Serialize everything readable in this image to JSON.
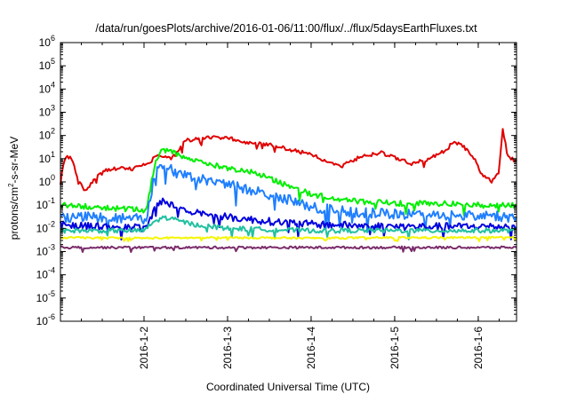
{
  "chart_data": {
    "type": "line",
    "title": "/data/run/goesPlots/archive/2016-01-06/11:00/flux/../flux/5daysEarthFluxes.txt",
    "xlabel": "Coordinated Universal Time (UTC)",
    "ylabel_base": "protons/cm",
    "ylabel_sup": "2",
    "ylabel_rest": "-s-sr-MeV",
    "y_scale": "log",
    "ylim": [
      1e-06,
      1000000.0
    ],
    "xlim": [
      "2016-01-01 00:00",
      "2016-01-06 11:00"
    ],
    "x_tick_labels": [
      "2016-1-2",
      "2016-1-3",
      "2016-1-4",
      "2016-1-5",
      "2016-1-6"
    ],
    "x_ticks": [
      "2016-01-02 00:00",
      "2016-01-03 00:00",
      "2016-01-04 00:00",
      "2016-01-05 00:00",
      "2016-01-06 00:00"
    ],
    "y_tick_labels": [
      {
        "base": "10",
        "exp": "6"
      },
      {
        "base": "10",
        "exp": "5"
      },
      {
        "base": "10",
        "exp": "4"
      },
      {
        "base": "10",
        "exp": "3"
      },
      {
        "base": "10",
        "exp": "2"
      },
      {
        "base": "10",
        "exp": "1"
      },
      {
        "base": "10",
        "exp": "0"
      },
      {
        "base": "10",
        "exp": "-1"
      },
      {
        "base": "10",
        "exp": "-2"
      },
      {
        "base": "10",
        "exp": "-3"
      },
      {
        "base": "10",
        "exp": "-4"
      },
      {
        "base": "10",
        "exp": "-5"
      },
      {
        "base": "10",
        "exp": "-6"
      }
    ],
    "y_tick_values": [
      1000000.0,
      100000.0,
      10000.0,
      1000.0,
      100.0,
      10.0,
      1,
      0.1,
      0.01,
      0.001,
      0.0001,
      1e-05,
      1e-06
    ],
    "grid": false,
    "legend": "none",
    "series": [
      {
        "color": "#e00000",
        "noise": 0.08,
        "points": [
          [
            "2016-01-01 00:00",
            0.8
          ],
          [
            "2016-01-01 01:00",
            10
          ],
          [
            "2016-01-01 03:00",
            12
          ],
          [
            "2016-01-01 05:00",
            1.5
          ],
          [
            "2016-01-01 07:00",
            0.4
          ],
          [
            "2016-01-01 10:00",
            1.5
          ],
          [
            "2016-01-01 13:00",
            3
          ],
          [
            "2016-01-01 17:00",
            4
          ],
          [
            "2016-01-01 21:00",
            3.5
          ],
          [
            "2016-01-02 00:00",
            6
          ],
          [
            "2016-01-02 02:00",
            8
          ],
          [
            "2016-01-02 04:00",
            15
          ],
          [
            "2016-01-02 08:00",
            10
          ],
          [
            "2016-01-02 12:00",
            60
          ],
          [
            "2016-01-02 18:00",
            80
          ],
          [
            "2016-01-03 00:00",
            80
          ],
          [
            "2016-01-03 06:00",
            50
          ],
          [
            "2016-01-03 12:00",
            40
          ],
          [
            "2016-01-03 18:00",
            25
          ],
          [
            "2016-01-04 00:00",
            15
          ],
          [
            "2016-01-04 04:00",
            8
          ],
          [
            "2016-01-04 09:00",
            5
          ],
          [
            "2016-01-04 14:00",
            12
          ],
          [
            "2016-01-04 20:00",
            18
          ],
          [
            "2016-01-05 01:00",
            10
          ],
          [
            "2016-01-05 05:00",
            6
          ],
          [
            "2016-01-05 10:00",
            10
          ],
          [
            "2016-01-05 15:00",
            25
          ],
          [
            "2016-01-05 17:00",
            60
          ],
          [
            "2016-01-05 20:00",
            30
          ],
          [
            "2016-01-05 23:00",
            10
          ],
          [
            "2016-01-06 01:00",
            2
          ],
          [
            "2016-01-06 04:00",
            1
          ],
          [
            "2016-01-06 06:00",
            3
          ],
          [
            "2016-01-06 07:00",
            200
          ],
          [
            "2016-01-06 08:30",
            12
          ],
          [
            "2016-01-06 11:00",
            8
          ]
        ]
      },
      {
        "color": "#00ee00",
        "noise": 0.12,
        "points": [
          [
            "2016-01-01 00:00",
            0.1
          ],
          [
            "2016-01-01 12:00",
            0.08
          ],
          [
            "2016-01-02 00:00",
            0.06
          ],
          [
            "2016-01-02 01:00",
            0.1
          ],
          [
            "2016-01-02 03:00",
            5
          ],
          [
            "2016-01-02 05:00",
            25
          ],
          [
            "2016-01-02 10:00",
            15
          ],
          [
            "2016-01-02 18:00",
            6
          ],
          [
            "2016-01-03 00:00",
            4
          ],
          [
            "2016-01-03 06:00",
            3
          ],
          [
            "2016-01-03 12:00",
            1.5
          ],
          [
            "2016-01-03 18:00",
            0.6
          ],
          [
            "2016-01-04 00:00",
            0.3
          ],
          [
            "2016-01-04 06:00",
            0.2
          ],
          [
            "2016-01-04 12:00",
            0.15
          ],
          [
            "2016-01-05 00:00",
            0.12
          ],
          [
            "2016-01-05 12:00",
            0.12
          ],
          [
            "2016-01-06 00:00",
            0.1
          ],
          [
            "2016-01-06 11:00",
            0.1
          ]
        ]
      },
      {
        "color": "#1f7fff",
        "noise": 0.22,
        "points": [
          [
            "2016-01-01 00:00",
            0.03
          ],
          [
            "2016-01-01 12:00",
            0.03
          ],
          [
            "2016-01-02 00:00",
            0.025
          ],
          [
            "2016-01-02 01:00",
            0.04
          ],
          [
            "2016-01-02 03:00",
            2
          ],
          [
            "2016-01-02 05:00",
            6
          ],
          [
            "2016-01-02 10:00",
            2
          ],
          [
            "2016-01-02 18:00",
            1.2
          ],
          [
            "2016-01-03 00:00",
            0.8
          ],
          [
            "2016-01-03 08:00",
            0.4
          ],
          [
            "2016-01-03 16:00",
            0.2
          ],
          [
            "2016-01-04 00:00",
            0.08
          ],
          [
            "2016-01-04 12:00",
            0.05
          ],
          [
            "2016-01-05 00:00",
            0.04
          ],
          [
            "2016-01-05 12:00",
            0.04
          ],
          [
            "2016-01-06 00:00",
            0.035
          ],
          [
            "2016-01-06 11:00",
            0.03
          ]
        ]
      },
      {
        "color": "#0000dd",
        "noise": 0.16,
        "points": [
          [
            "2016-01-01 00:00",
            0.015
          ],
          [
            "2016-01-01 12:00",
            0.012
          ],
          [
            "2016-01-02 00:00",
            0.01
          ],
          [
            "2016-01-02 01:00",
            0.012
          ],
          [
            "2016-01-02 03:00",
            0.08
          ],
          [
            "2016-01-02 05:00",
            0.15
          ],
          [
            "2016-01-02 12:00",
            0.06
          ],
          [
            "2016-01-03 00:00",
            0.03
          ],
          [
            "2016-01-03 12:00",
            0.02
          ],
          [
            "2016-01-04 00:00",
            0.015
          ],
          [
            "2016-01-05 00:00",
            0.012
          ],
          [
            "2016-01-06 00:00",
            0.012
          ],
          [
            "2016-01-06 11:00",
            0.012
          ]
        ]
      },
      {
        "color": "#20c0a0",
        "noise": 0.1,
        "points": [
          [
            "2016-01-01 00:00",
            0.008
          ],
          [
            "2016-01-02 00:00",
            0.008
          ],
          [
            "2016-01-02 03:00",
            0.02
          ],
          [
            "2016-01-02 06:00",
            0.03
          ],
          [
            "2016-01-02 14:00",
            0.015
          ],
          [
            "2016-01-03 00:00",
            0.01
          ],
          [
            "2016-01-04 00:00",
            0.008
          ],
          [
            "2016-01-05 00:00",
            0.008
          ],
          [
            "2016-01-06 00:00",
            0.008
          ],
          [
            "2016-01-06 11:00",
            0.008
          ]
        ]
      },
      {
        "color": "#f5f500",
        "noise": 0.04,
        "points": [
          [
            "2016-01-01 00:00",
            0.004
          ],
          [
            "2016-01-02 00:00",
            0.0038
          ],
          [
            "2016-01-03 00:00",
            0.004
          ],
          [
            "2016-01-04 00:00",
            0.0038
          ],
          [
            "2016-01-05 00:00",
            0.004
          ],
          [
            "2016-01-06 00:00",
            0.004
          ],
          [
            "2016-01-06 11:00",
            0.004
          ]
        ]
      },
      {
        "color": "#7b2d6b",
        "noise": 0.05,
        "points": [
          [
            "2016-01-01 00:00",
            0.0015
          ],
          [
            "2016-01-02 00:00",
            0.0015
          ],
          [
            "2016-01-03 00:00",
            0.0015
          ],
          [
            "2016-01-04 00:00",
            0.0015
          ],
          [
            "2016-01-05 00:00",
            0.0015
          ],
          [
            "2016-01-06 00:00",
            0.0015
          ],
          [
            "2016-01-06 11:00",
            0.0015
          ]
        ]
      }
    ]
  }
}
